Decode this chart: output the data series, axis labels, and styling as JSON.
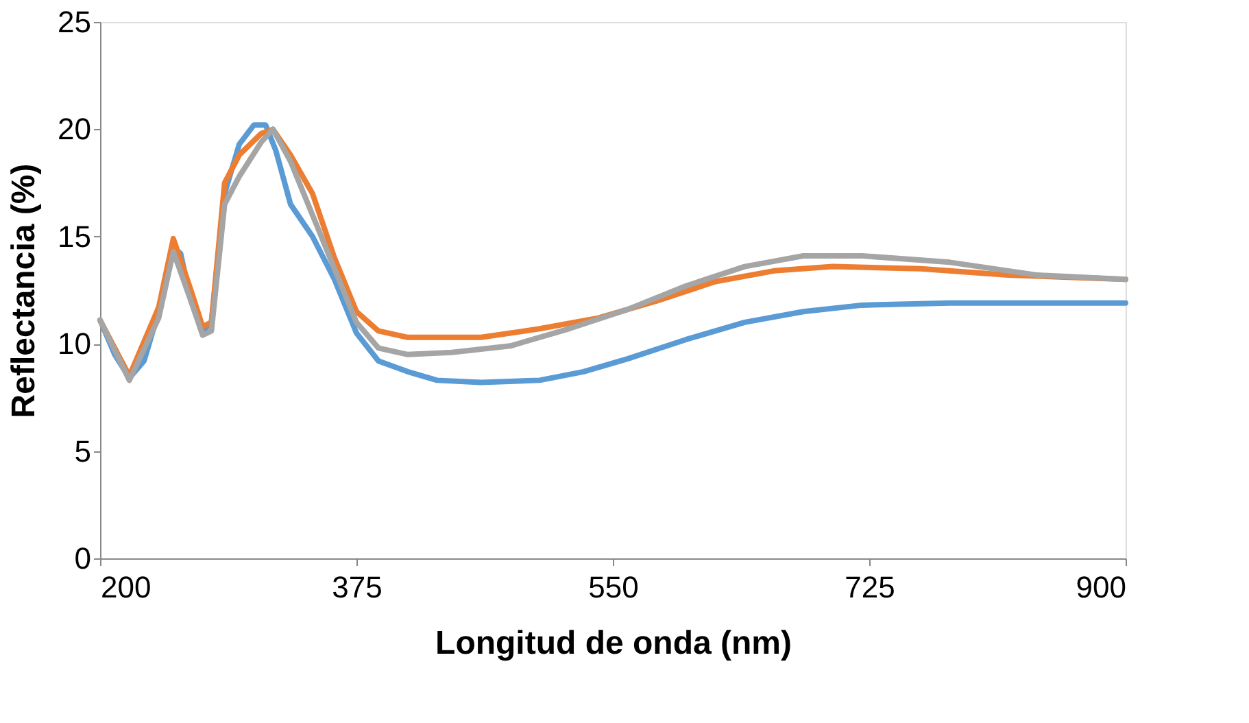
{
  "chart_data": {
    "type": "line",
    "xlabel": "Longitud de onda (nm)",
    "ylabel": "Reflectancia (%)",
    "xlim": [
      200,
      900
    ],
    "xticks": [
      200,
      375,
      550,
      725,
      900
    ],
    "ylim": [
      0,
      25
    ],
    "yticks": [
      0,
      5,
      10,
      15,
      20,
      25
    ],
    "grid": false,
    "legend": false,
    "marker": "none",
    "line_style": "solid",
    "series": [
      {
        "color": "#5b9bd5",
        "x": [
          200,
          210,
          220,
          230,
          240,
          250,
          255,
          262,
          270,
          276,
          285,
          295,
          305,
          313,
          320,
          330,
          345,
          360,
          375,
          390,
          410,
          430,
          460,
          500,
          530,
          560,
          600,
          640,
          680,
          720,
          780,
          840,
          900
        ],
        "values": [
          11.1,
          9.5,
          8.4,
          9.2,
          11.5,
          14.5,
          14.2,
          12,
          10.6,
          11,
          17,
          19.3,
          20.2,
          20.2,
          19,
          16.5,
          15,
          13,
          10.5,
          9.2,
          8.7,
          8.3,
          8.2,
          8.3,
          8.7,
          9.3,
          10.2,
          11.0,
          11.5,
          11.8,
          11.9,
          11.9,
          11.9
        ]
      },
      {
        "color": "#ed7d31",
        "x": [
          200,
          220,
          240,
          250,
          262,
          270,
          276,
          285,
          295,
          310,
          318,
          330,
          345,
          360,
          375,
          390,
          410,
          460,
          500,
          540,
          580,
          620,
          660,
          700,
          760,
          820,
          900
        ],
        "values": [
          11.1,
          8.5,
          11.7,
          14.9,
          12.5,
          10.8,
          11,
          17.5,
          18.8,
          19.8,
          20,
          18.8,
          17,
          14,
          11.5,
          10.6,
          10.3,
          10.3,
          10.7,
          11.2,
          12.0,
          12.9,
          13.4,
          13.6,
          13.5,
          13.2,
          13.0
        ]
      },
      {
        "color": "#a5a5a5",
        "x": [
          200,
          220,
          240,
          250,
          262,
          270,
          276,
          285,
          295,
          310,
          318,
          330,
          345,
          360,
          375,
          390,
          410,
          440,
          480,
          520,
          560,
          600,
          640,
          680,
          720,
          780,
          840,
          900
        ],
        "values": [
          11.1,
          8.3,
          11.2,
          14.3,
          12,
          10.4,
          10.6,
          16.5,
          17.8,
          19.4,
          20,
          18.5,
          16,
          13.5,
          11,
          9.8,
          9.5,
          9.6,
          9.9,
          10.7,
          11.6,
          12.7,
          13.6,
          14.1,
          14.1,
          13.8,
          13.2,
          13.0
        ]
      }
    ]
  }
}
